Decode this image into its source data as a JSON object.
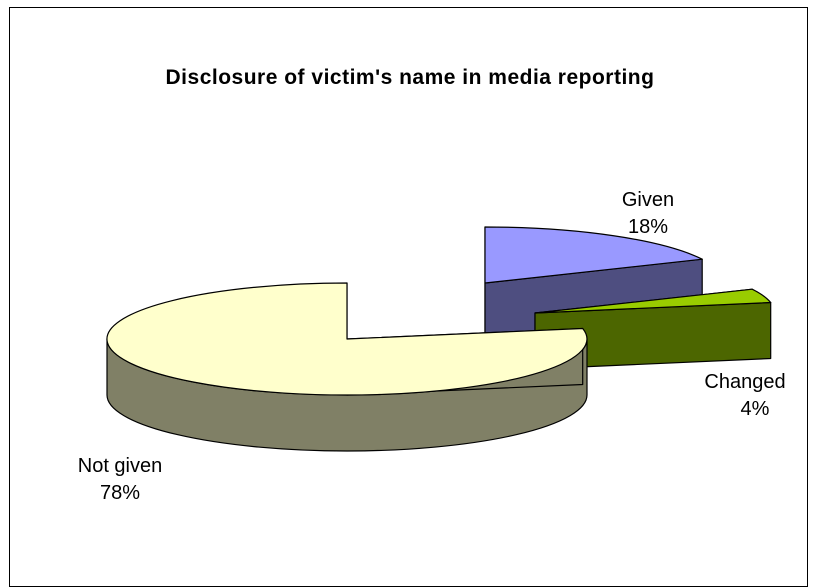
{
  "chart_data": {
    "type": "pie",
    "title": "Disclosure of victim's name in media reporting",
    "slices": [
      {
        "label": "Given",
        "value": 18,
        "value_label": "18%",
        "color": "#9999FF",
        "side_color": "#4E4E80"
      },
      {
        "label": "Changed",
        "value": 4,
        "value_label": "4%",
        "color": "#99CC00",
        "side_color": "#4C6600"
      },
      {
        "label": "Not given",
        "value": 78,
        "value_label": "78%",
        "color": "#FFFFCC",
        "side_color": "#808066"
      }
    ],
    "exploded": [
      "Given",
      "Changed"
    ],
    "three_d": true,
    "legend": "none"
  }
}
